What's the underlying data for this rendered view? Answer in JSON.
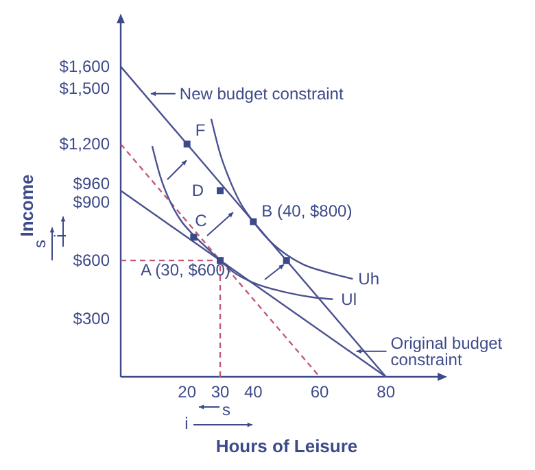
{
  "chart_data": {
    "type": "line",
    "xlabel": "Hours of Leisure",
    "ylabel": "Income",
    "xlim": [
      0,
      96
    ],
    "ylim": [
      0,
      1830
    ],
    "xticks": [
      20,
      30,
      40,
      60,
      80
    ],
    "yticks": [
      {
        "value": 300,
        "label": "$300"
      },
      {
        "value": 600,
        "label": "$600"
      },
      {
        "value": 900,
        "label": "$900"
      },
      {
        "value": 960,
        "label": "$960"
      },
      {
        "value": 1200,
        "label": "$1,200"
      },
      {
        "value": 1500,
        "label": "$1,500"
      },
      {
        "value": 1600,
        "label": "$1,600"
      }
    ],
    "grid": false,
    "series": [
      {
        "color": "#4a5190",
        "line_style": "solid",
        "x": [
          0,
          80
        ],
        "values": [
          1600,
          0
        ]
      },
      {
        "type": "line",
        "color": "#4a5190",
        "line_style": "solid",
        "x": [
          0,
          80
        ],
        "values": [
          960,
          0
        ]
      },
      {
        "type": "line",
        "color": "#c45a78",
        "line_style": "dashed",
        "x": [
          0,
          60
        ],
        "values": [
          1200,
          0
        ]
      },
      {
        "type": "line",
        "color": "#c45a78",
        "line_style": "dashed",
        "x": [
          0,
          30
        ],
        "values": [
          600,
          600
        ]
      },
      {
        "type": "line",
        "color": "#c45a78",
        "line_style": "dashed",
        "x": [
          30,
          30
        ],
        "values": [
          0,
          600
        ]
      },
      {
        "type": "line",
        "color": "#4a5190",
        "line_style": "solid",
        "x": [
          9.5,
          12,
          15,
          18,
          22,
          26,
          30,
          34,
          40,
          50,
          58,
          64
        ],
        "values": [
          1190,
          1030,
          900,
          810,
          730,
          665,
          600,
          540,
          485,
          435,
          410,
          400
        ]
      },
      {
        "type": "line",
        "color": "#4a5190",
        "line_style": "solid",
        "x": [
          27.3,
          30,
          33,
          36,
          40,
          45,
          50,
          55,
          62,
          70
        ],
        "values": [
          1330,
          1150,
          1010,
          900,
          800,
          700,
          630,
          580,
          540,
          505
        ]
      },
      {
        "type": "scatter",
        "color": "#3d4a8a",
        "marker": "square",
        "x": [
          20,
          30,
          40,
          22,
          30,
          50
        ],
        "values": [
          1200,
          960,
          800,
          720,
          600,
          600
        ]
      }
    ],
    "annotations": [
      {
        "text": "F",
        "x": 20,
        "y": 1200
      },
      {
        "text": "D",
        "x": 30,
        "y": 960
      },
      {
        "text": "B (40, $800)",
        "x": 40,
        "y": 800
      },
      {
        "text": "C",
        "x": 22,
        "y": 720
      },
      {
        "text": "A (30, $600)",
        "x": 30,
        "y": 600
      },
      {
        "text": "Uh",
        "x": 70,
        "y": 505
      },
      {
        "text": "Ul",
        "x": 64,
        "y": 400
      },
      {
        "text": "New budget constraint",
        "x": 7,
        "y": 1460
      },
      {
        "text": "Original budget constraint",
        "x": 69,
        "y": 132
      },
      "s",
      "i",
      "s",
      "i"
    ]
  }
}
